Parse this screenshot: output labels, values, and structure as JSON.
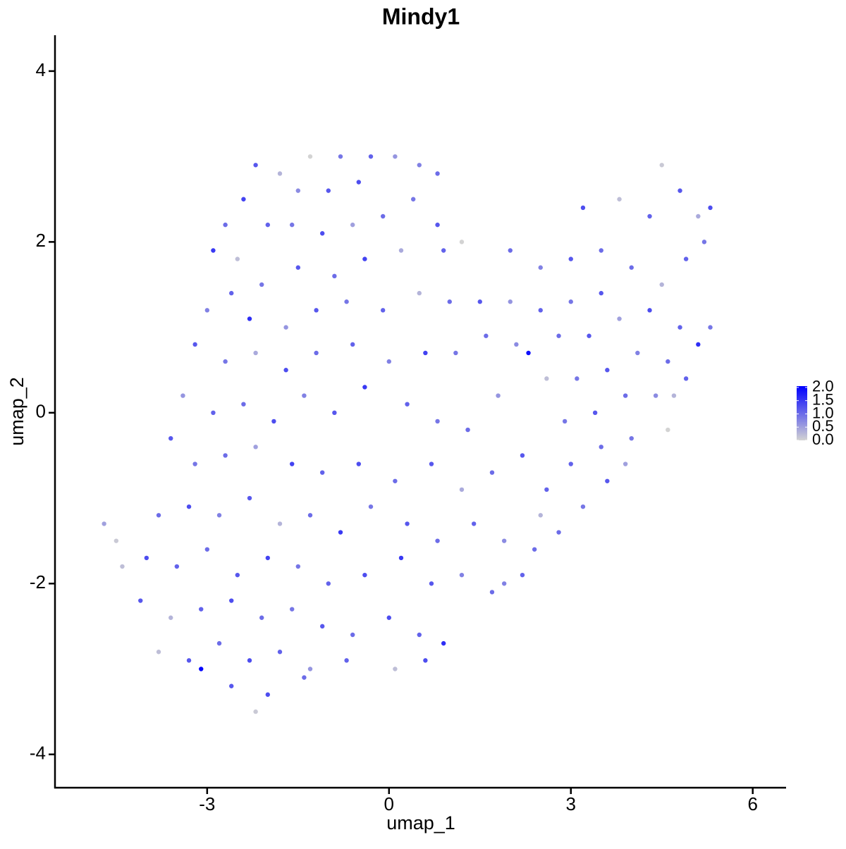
{
  "chart_data": {
    "type": "scatter",
    "title": "Mindy1",
    "x_label": "umap_1",
    "y_label": "umap_2",
    "xlim": [
      -5.51,
      6.55
    ],
    "xticks": [
      -3,
      0,
      3,
      6
    ],
    "ylim": [
      -4.39,
      4.42
    ],
    "yticks": [
      -4,
      -2,
      0,
      2,
      4
    ],
    "color_low": "#d3d3d3",
    "color_high": "#0000ff",
    "colorbar": {
      "lim": [
        0,
        2.05
      ],
      "ticks": [
        {
          "value": 0,
          "label": "0.0"
        },
        {
          "value": 0.5,
          "label": "0.5"
        },
        {
          "value": 1,
          "label": "1.0"
        },
        {
          "value": 1.5,
          "label": "1.5"
        },
        {
          "value": 2,
          "label": "2.0"
        }
      ]
    },
    "x": [
      -2.2,
      -1.8,
      -1.3,
      -0.8,
      -0.3,
      0.1,
      0.5,
      0.8,
      -0.5,
      -1.0,
      -1.5,
      -2.4,
      -2.7,
      -2.9,
      -2.5,
      -2.0,
      -1.6,
      -1.1,
      -0.6,
      -0.1,
      0.4,
      0.8,
      1.2,
      0.9,
      0.2,
      -0.4,
      -0.9,
      -1.5,
      -2.1,
      -2.6,
      -3.0,
      -2.3,
      -1.7,
      -1.2,
      -0.7,
      -0.1,
      0.5,
      1.0,
      1.5,
      -3.2,
      -2.7,
      -2.2,
      -1.7,
      -1.2,
      -0.6,
      0,
      0.6,
      1.1,
      1.6,
      2.1,
      2.3,
      -3.4,
      -2.9,
      -2.4,
      -1.9,
      -1.4,
      -0.9,
      -0.4,
      0.3,
      0.8,
      1.3,
      1.8,
      -3.6,
      -3.2,
      -2.7,
      -2.2,
      -1.6,
      -1.1,
      -0.5,
      0.1,
      0.7,
      1.2,
      1.7,
      2.2,
      2.6,
      -3.8,
      -3.3,
      -2.8,
      -2.3,
      -1.8,
      -1.3,
      -0.8,
      -0.3,
      0.3,
      0.8,
      1.4,
      1.9,
      2.4,
      -4.0,
      -3.5,
      -3.0,
      -2.5,
      -2.0,
      -1.5,
      -1.0,
      -0.4,
      0.2,
      0.7,
      1.2,
      1.7,
      -4.1,
      -3.6,
      -3.1,
      -2.6,
      -2.1,
      -1.6,
      -1.1,
      -0.6,
      0,
      0.5,
      0.9,
      -3.8,
      -3.3,
      -2.8,
      -2.3,
      -1.8,
      -1.3,
      -0.7,
      0.1,
      0.6,
      -3.1,
      -2.6,
      -2.2,
      -2.0,
      -1.4,
      -4.7,
      -4.5,
      -4.4,
      2.0,
      2.5,
      3.0,
      3.5,
      3.2,
      3.8,
      4.3,
      4.5,
      4.8,
      5.1,
      5.3,
      5.2,
      4.9,
      4.5,
      4.0,
      3.5,
      3.0,
      2.5,
      2.0,
      2.8,
      3.3,
      3.8,
      4.3,
      4.8,
      5.1,
      5.3,
      4.6,
      4.1,
      3.6,
      3.1,
      2.6,
      4.9,
      4.4,
      3.9,
      3.4,
      2.9,
      4.7,
      4.0,
      3.5,
      3.0,
      3.6,
      3.2,
      2.8,
      2.5,
      2.2,
      1.9,
      4.6,
      3.9
    ],
    "y": [
      2.9,
      2.8,
      3.0,
      3.0,
      3.0,
      3.0,
      2.9,
      2.8,
      2.7,
      2.6,
      2.6,
      2.5,
      2.2,
      1.9,
      1.8,
      2.2,
      2.2,
      2.1,
      2.2,
      2.3,
      2.5,
      2.2,
      2.0,
      1.9,
      1.9,
      1.8,
      1.6,
      1.7,
      1.5,
      1.4,
      1.2,
      1.1,
      1.0,
      1.2,
      1.3,
      1.2,
      1.4,
      1.3,
      1.3,
      0.8,
      0.6,
      0.7,
      0.5,
      0.7,
      0.8,
      0.6,
      0.7,
      0.7,
      0.9,
      0.8,
      0.7,
      0.2,
      0.0,
      0.1,
      -0.1,
      0.2,
      0.0,
      0.3,
      0.1,
      -0.1,
      -0.2,
      0.2,
      -0.3,
      -0.6,
      -0.5,
      -0.4,
      -0.6,
      -0.7,
      -0.6,
      -0.8,
      -0.6,
      -0.9,
      -0.7,
      -0.5,
      -0.9,
      -1.2,
      -1.1,
      -1.2,
      -1.0,
      -1.3,
      -1.2,
      -1.4,
      -1.1,
      -1.3,
      -1.5,
      -1.3,
      -1.5,
      -1.6,
      -1.7,
      -1.8,
      -1.6,
      -1.9,
      -1.7,
      -1.8,
      -2.0,
      -1.9,
      -1.7,
      -2.0,
      -1.9,
      -2.1,
      -2.2,
      -2.4,
      -2.3,
      -2.2,
      -2.4,
      -2.3,
      -2.5,
      -2.6,
      -2.4,
      -2.6,
      -2.7,
      -2.8,
      -2.9,
      -2.7,
      -2.9,
      -2.8,
      -3.0,
      -2.9,
      -3.0,
      -2.9,
      -3.0,
      -3.2,
      -3.5,
      -3.3,
      -3.1,
      -1.3,
      -1.5,
      -1.8,
      1.9,
      1.7,
      1.8,
      1.9,
      2.4,
      2.5,
      2.3,
      2.9,
      2.6,
      2.3,
      2.4,
      2.0,
      1.8,
      1.5,
      1.7,
      1.4,
      1.3,
      1.2,
      1.3,
      0.9,
      0.9,
      1.1,
      1.2,
      1.0,
      0.8,
      1.0,
      0.6,
      0.7,
      0.5,
      0.4,
      0.4,
      0.4,
      0.2,
      0.2,
      0.0,
      -0.1,
      0.2,
      -0.3,
      -0.4,
      -0.6,
      -0.8,
      -1.1,
      -1.4,
      -1.2,
      -1.9,
      -2.0,
      -0.2,
      -0.6
    ],
    "expression": [
      1.2,
      0.3,
      0,
      0.9,
      1.1,
      0.6,
      0.8,
      1.0,
      1.3,
      1.2,
      0.7,
      1.4,
      1.0,
      1.5,
      0.2,
      1.1,
      0.9,
      1.3,
      0.5,
      1.0,
      0.9,
      1.2,
      0,
      1.1,
      0.4,
      1.4,
      1.0,
      1.2,
      0.9,
      1.1,
      0.8,
      1.6,
      0.6,
      1.2,
      0.9,
      1.1,
      0.3,
      1.0,
      1.2,
      1.2,
      0.9,
      0.4,
      1.3,
      1.0,
      1.1,
      0.8,
      1.4,
      0.9,
      1.0,
      0.7,
      1.9,
      0.6,
      1.1,
      1.0,
      1.3,
      0.8,
      1.2,
      1.5,
      1.1,
      0.9,
      1.0,
      0.6,
      1.2,
      0.9,
      1.0,
      0.5,
      1.4,
      1.1,
      1.3,
      1.0,
      1.2,
      0.4,
      1.0,
      1.2,
      1.1,
      1.0,
      1.3,
      0.8,
      1.2,
      0.3,
      1.0,
      1.5,
      0.9,
      1.2,
      1.0,
      1.1,
      0.7,
      1.0,
      1.3,
      1.1,
      1.0,
      1.2,
      1.4,
      0.9,
      1.1,
      1.3,
      1.5,
      1.2,
      0.8,
      1.0,
      1.2,
      0.3,
      1.1,
      1.3,
      1.0,
      0.9,
      1.2,
      1.0,
      1.3,
      1.1,
      1.6,
      0.2,
      1.2,
      1.0,
      1.3,
      1.1,
      0.6,
      1.1,
      0.2,
      1.3,
      2.0,
      1.2,
      0.1,
      1.3,
      1.0,
      0.5,
      0.1,
      0.2,
      1.0,
      0.8,
      1.2,
      1.0,
      1.3,
      0.2,
      1.1,
      0.1,
      1.2,
      0.4,
      1.3,
      0.9,
      1.1,
      0.3,
      1.0,
      1.2,
      0.9,
      1.1,
      0.6,
      1.0,
      1.2,
      0.5,
      1.3,
      1.1,
      1.6,
      0.9,
      1.0,
      0.8,
      1.2,
      0.9,
      0.2,
      1.1,
      0.7,
      1.0,
      1.2,
      0.9,
      0.3,
      0.9,
      1.0,
      1.1,
      1.2,
      0.9,
      1.0,
      0.3,
      1.1,
      0.8,
      0.0,
      0.5
    ]
  }
}
